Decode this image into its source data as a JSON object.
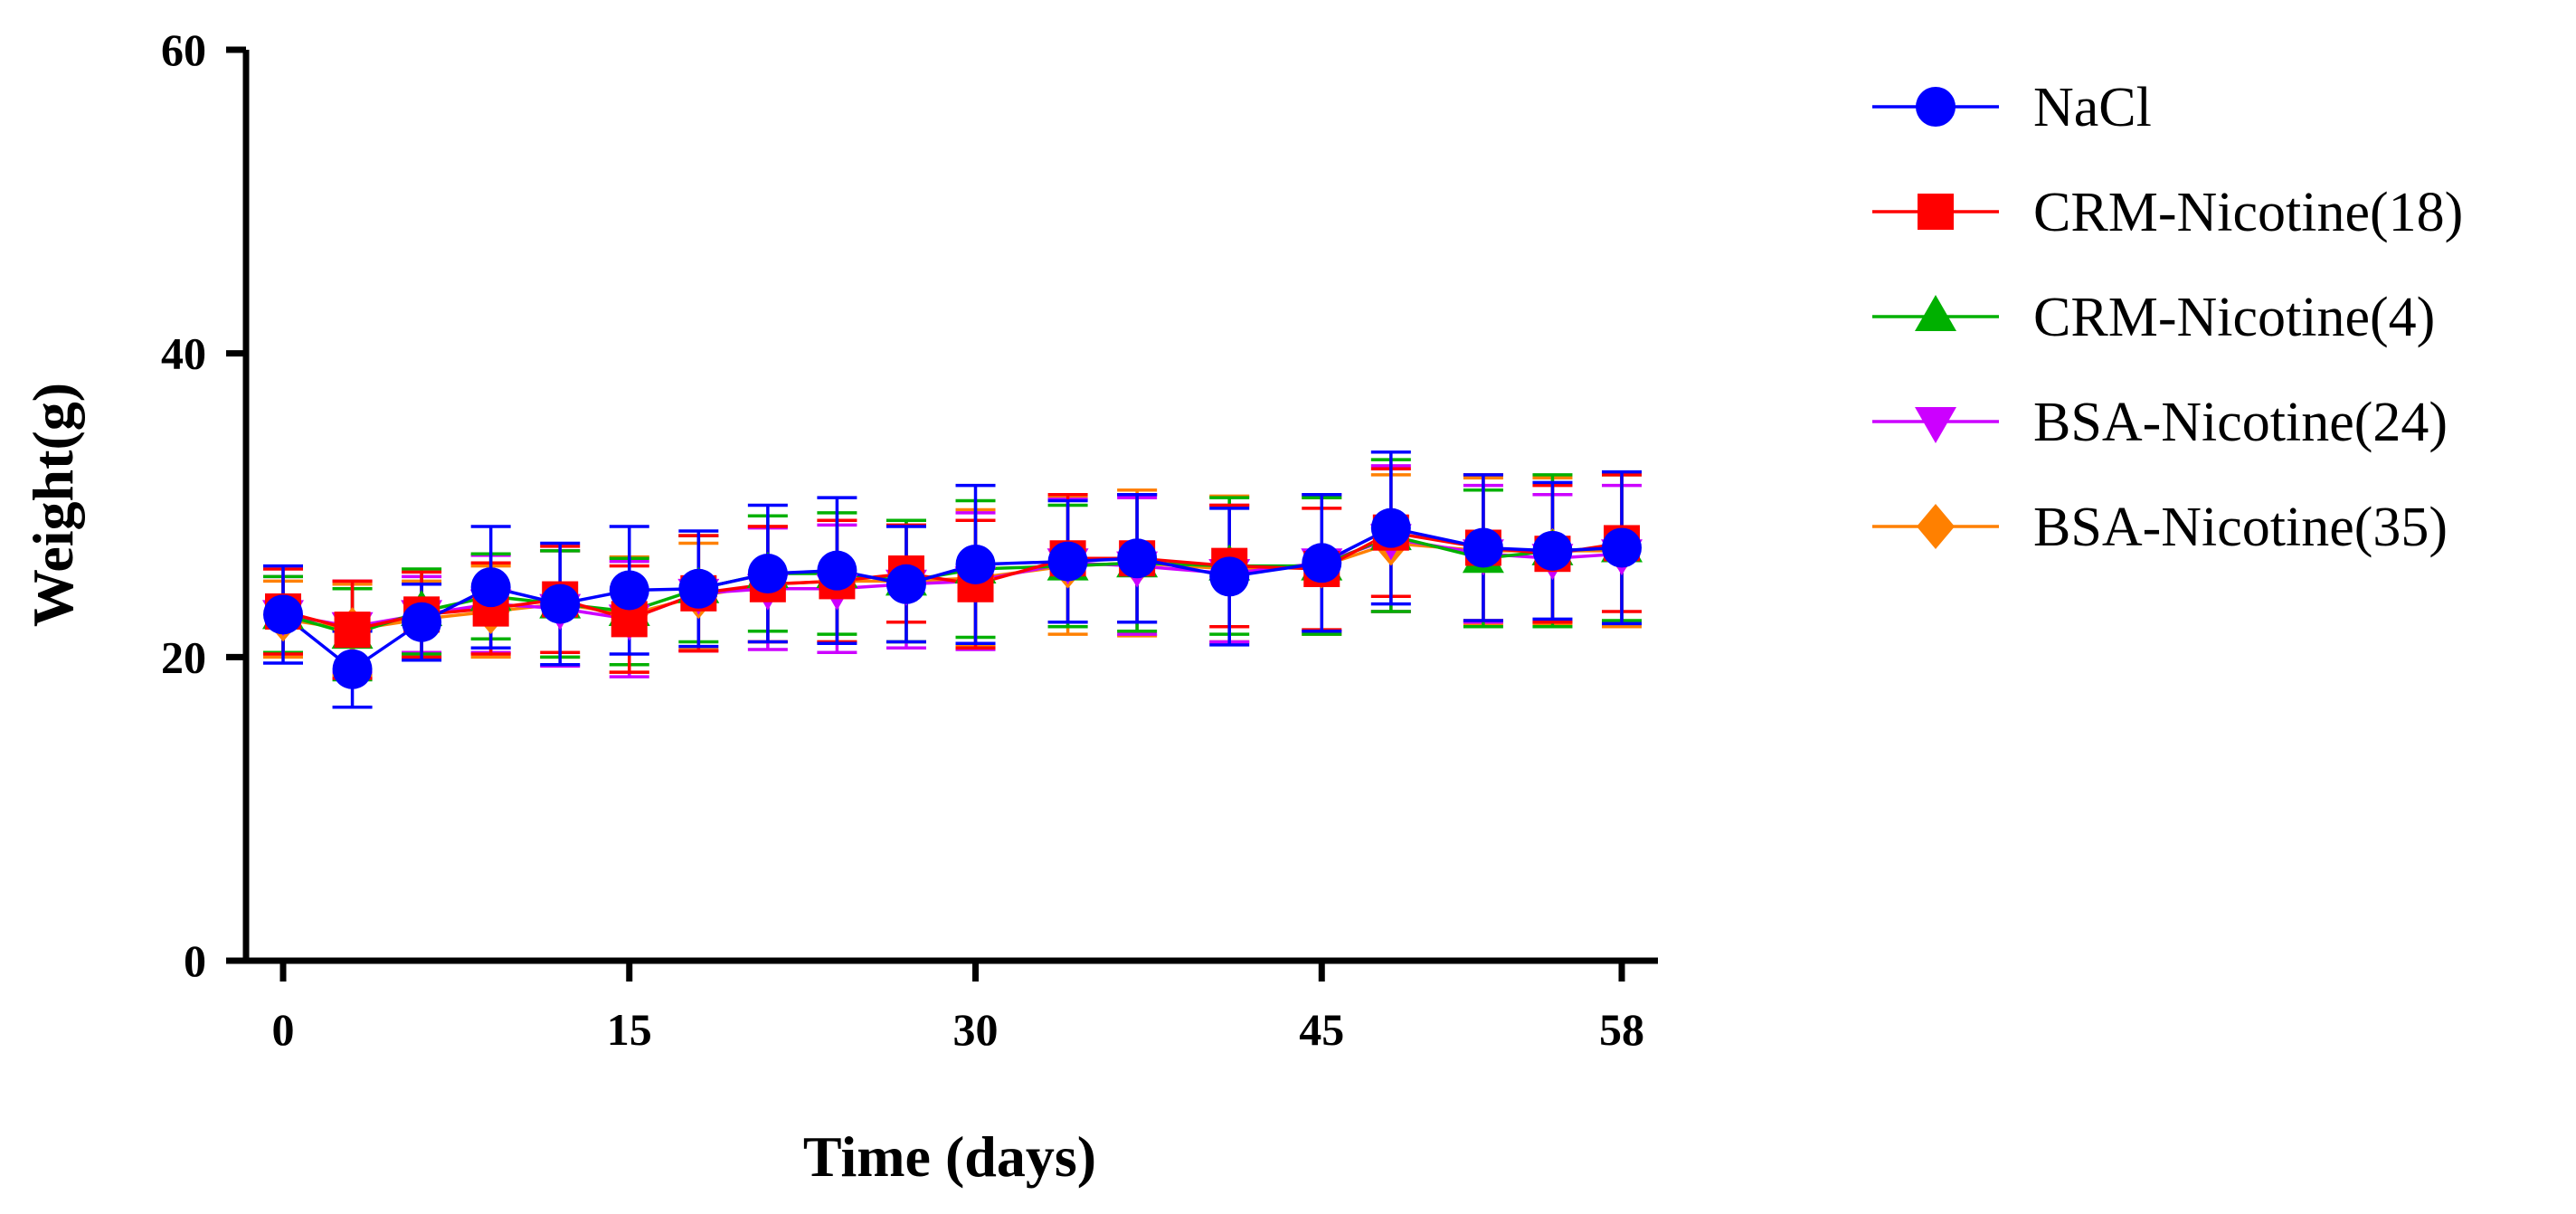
{
  "chart_data": {
    "type": "line",
    "title": "",
    "xlabel": "Time (days)",
    "ylabel": "Weight(g)",
    "xlim": [
      0,
      58
    ],
    "ylim": [
      0,
      60
    ],
    "xticks": [
      "0",
      "15",
      "30",
      "45",
      "58"
    ],
    "yticks": [
      "0",
      "20",
      "40",
      "60"
    ],
    "grid": false,
    "legend_position": "right",
    "x": [
      0,
      3,
      6,
      9,
      12,
      15,
      18,
      21,
      24,
      27,
      30,
      34,
      37,
      41,
      45,
      48,
      52,
      55,
      58
    ],
    "series": [
      {
        "name": "BSA-Nicotine(35)",
        "color": "#ff8000",
        "marker": "diamond",
        "values": [
          22.5,
          21.8,
          22.5,
          23.0,
          23.5,
          22.8,
          24.0,
          24.8,
          25.0,
          25.0,
          25.2,
          26.0,
          26.2,
          25.8,
          26.0,
          27.5,
          27.0,
          27.0,
          27.0
        ],
        "errors": [
          2.5,
          3.0,
          2.5,
          3.0,
          3.5,
          3.8,
          3.5,
          3.8,
          4.0,
          4.0,
          4.5,
          4.5,
          4.8,
          4.8,
          4.5,
          4.5,
          4.8,
          4.8,
          5.0
        ]
      },
      {
        "name": "BSA-Nicotine(24)",
        "color": "#cc00ff",
        "marker": "triangle-down",
        "values": [
          22.8,
          22.0,
          22.8,
          23.5,
          23.2,
          22.5,
          24.2,
          24.5,
          24.5,
          24.8,
          25.0,
          26.2,
          26.0,
          25.5,
          26.2,
          27.8,
          26.8,
          26.5,
          26.8
        ],
        "errors": [
          2.5,
          3.0,
          2.5,
          3.2,
          3.8,
          3.8,
          3.8,
          4.0,
          4.2,
          4.2,
          4.5,
          4.2,
          4.5,
          4.5,
          4.5,
          4.8,
          4.5,
          4.2,
          4.5
        ]
      },
      {
        "name": "CRM-Nicotine(4)",
        "color": "#00b000",
        "marker": "triangle-up",
        "values": [
          22.8,
          21.5,
          23.0,
          24.0,
          23.5,
          23.0,
          24.5,
          25.5,
          25.5,
          25.0,
          25.8,
          26.0,
          26.2,
          26.0,
          26.0,
          28.0,
          26.5,
          27.0,
          27.2
        ],
        "errors": [
          2.5,
          3.0,
          2.8,
          2.8,
          3.5,
          3.5,
          3.5,
          3.8,
          4.0,
          4.0,
          4.5,
          4.0,
          4.5,
          4.5,
          4.5,
          5.0,
          4.5,
          5.0,
          4.8
        ]
      },
      {
        "name": "CRM-Nicotine(18)",
        "color": "#ff0000",
        "marker": "square",
        "values": [
          23.0,
          21.8,
          22.8,
          23.2,
          23.8,
          22.5,
          24.2,
          24.8,
          25.0,
          25.5,
          24.8,
          26.5,
          26.5,
          26.0,
          25.8,
          28.2,
          27.2,
          26.8,
          27.5
        ],
        "errors": [
          2.8,
          3.2,
          2.8,
          3.0,
          3.5,
          3.5,
          3.8,
          3.8,
          4.0,
          3.2,
          4.2,
          4.2,
          4.2,
          4.0,
          4.0,
          4.2,
          4.8,
          4.5,
          4.5
        ]
      },
      {
        "name": "NaCl",
        "color": "#0000ff",
        "marker": "circle",
        "values": [
          22.8,
          19.2,
          22.3,
          24.6,
          23.5,
          24.4,
          24.5,
          25.5,
          25.7,
          24.8,
          26.1,
          26.3,
          26.5,
          25.3,
          26.2,
          28.5,
          27.2,
          27.0,
          27.2
        ],
        "errors": [
          3.2,
          2.5,
          2.5,
          4.0,
          4.0,
          4.2,
          3.8,
          4.5,
          4.8,
          3.8,
          5.2,
          4.0,
          4.2,
          4.5,
          4.5,
          5.0,
          4.8,
          4.5,
          5.0
        ]
      }
    ],
    "legend": [
      {
        "name": "NaCl",
        "color": "#0000ff",
        "marker": "circle"
      },
      {
        "name": "CRM-Nicotine(18)",
        "color": "#ff0000",
        "marker": "square"
      },
      {
        "name": "CRM-Nicotine(4)",
        "color": "#00b000",
        "marker": "triangle-up"
      },
      {
        "name": "BSA-Nicotine(24)",
        "color": "#cc00ff",
        "marker": "triangle-down"
      },
      {
        "name": "BSA-Nicotine(35)",
        "color": "#ff8000",
        "marker": "diamond"
      }
    ]
  }
}
